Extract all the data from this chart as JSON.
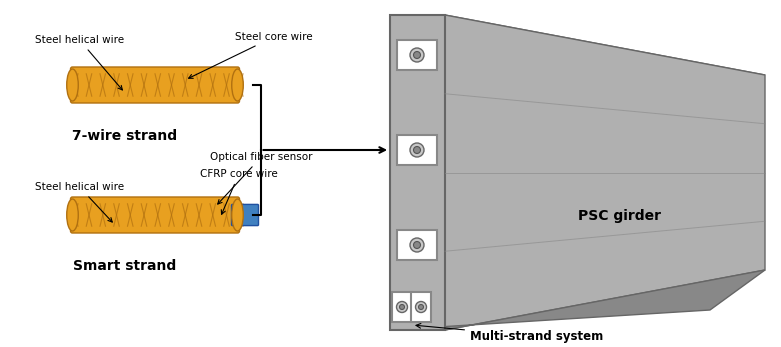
{
  "title": "",
  "background_color": "#ffffff",
  "strand_color": "#E8A020",
  "strand_shadow": "#B07010",
  "blue_color": "#4080C0",
  "concrete_color": "#B0B0B0",
  "concrete_light": "#D0D0D0",
  "concrete_dark": "#888888",
  "anchor_color": "#C8C8C8",
  "text_color": "#000000",
  "label_7wire": "7-wire strand",
  "label_smart": "Smart strand",
  "label_psc": "PSC girder",
  "label_multi": "Multi-strand system",
  "ann_steel_core": "Steel core wire",
  "ann_steel_helical_top": "Steel helical wire",
  "ann_optical": "Optical fiber sensor",
  "ann_cfrp": "CFRP core wire",
  "ann_steel_helical_bot": "Steel helical wire",
  "figsize": [
    7.81,
    3.47
  ],
  "dpi": 100
}
